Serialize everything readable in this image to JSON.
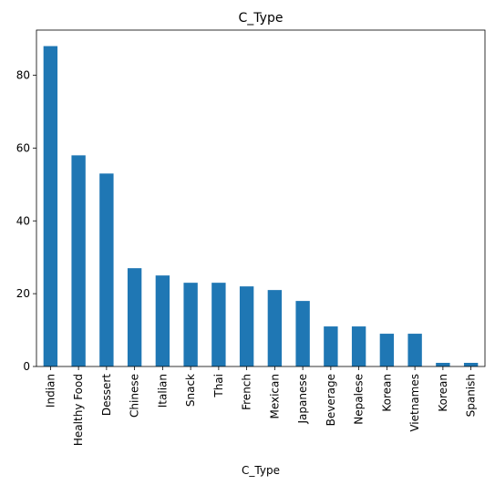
{
  "chart_data": {
    "type": "bar",
    "title": "C_Type",
    "xlabel": "C_Type",
    "ylabel": "",
    "categories": [
      "Indian",
      "Healthy Food",
      "Dessert",
      "Chinese",
      "Italian",
      "Snack",
      "Thai",
      "French",
      "Mexican",
      "Japanese",
      "Beverage",
      "Nepalese",
      "Korean",
      "Vietnames",
      "Korean",
      "Spanish"
    ],
    "values": [
      88,
      58,
      53,
      27,
      25,
      23,
      23,
      22,
      21,
      18,
      11,
      11,
      9,
      9,
      1,
      1
    ],
    "ylim": [
      0,
      92.4
    ],
    "yticks": [
      0,
      20,
      40,
      60,
      80
    ],
    "grid": false,
    "bar_color": "#1f77b4"
  }
}
